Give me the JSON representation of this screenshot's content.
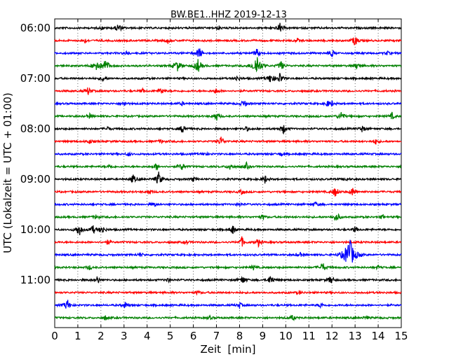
{
  "chart_data": {
    "type": "line",
    "title": "BW.BE1..HHZ 2019-12-13",
    "xlabel": "Zeit  [min]",
    "ylabel": "UTC (Lokalzeit = UTC + 01:00)",
    "xlim": [
      0,
      15
    ],
    "x_ticks": [
      "0",
      "1",
      "2",
      "3",
      "4",
      "5",
      "6",
      "7",
      "8",
      "9",
      "10",
      "11",
      "12",
      "13",
      "14",
      "15"
    ],
    "y_tick_labels": [
      "06:00",
      "07:00",
      "08:00",
      "09:00",
      "10:00",
      "11:00"
    ],
    "grid": "vertical dotted",
    "trace_colors": [
      "#000000",
      "#ff0000",
      "#0000ff",
      "#008000"
    ],
    "traces": [
      {
        "start": "06:00",
        "events": [
          [
            2.75,
            0.5
          ],
          [
            9.75,
            0.5
          ],
          [
            7.1,
            0.2
          ],
          [
            2.05,
            0.15
          ]
        ]
      },
      {
        "start": "06:15",
        "events": [
          [
            13.0,
            0.55
          ],
          [
            1.3,
            0.25
          ],
          [
            4.9,
            0.25
          ],
          [
            10.5,
            0.2
          ]
        ]
      },
      {
        "start": "06:30",
        "events": [
          [
            6.25,
            0.6
          ],
          [
            8.75,
            0.45
          ],
          [
            12.0,
            0.35
          ],
          [
            3.1,
            0.25
          ],
          [
            14.4,
            0.2
          ]
        ]
      },
      {
        "start": "06:45",
        "events": [
          [
            1.8,
            0.7
          ],
          [
            2.2,
            0.7
          ],
          [
            5.3,
            0.6
          ],
          [
            6.2,
            0.7
          ],
          [
            8.75,
            1.2
          ],
          [
            9.8,
            0.5
          ],
          [
            13.1,
            0.4
          ]
        ]
      },
      {
        "start": "07:00",
        "events": [
          [
            9.35,
            0.55
          ],
          [
            9.75,
            0.55
          ],
          [
            2.1,
            0.3
          ],
          [
            7.9,
            0.3
          ]
        ]
      },
      {
        "start": "07:15",
        "events": [
          [
            1.45,
            0.45
          ],
          [
            4.6,
            0.35
          ],
          [
            7.0,
            0.3
          ],
          [
            3.8,
            0.2
          ]
        ]
      },
      {
        "start": "07:30",
        "events": [
          [
            8.2,
            0.45
          ],
          [
            3.0,
            0.3
          ],
          [
            11.8,
            0.3
          ],
          [
            12.0,
            0.25
          ],
          [
            5.5,
            0.2
          ]
        ]
      },
      {
        "start": "07:45",
        "events": [
          [
            7.0,
            0.45
          ],
          [
            12.4,
            0.5
          ],
          [
            14.6,
            0.35
          ],
          [
            1.5,
            0.25
          ]
        ]
      },
      {
        "start": "08:00",
        "events": [
          [
            5.55,
            0.5
          ],
          [
            9.9,
            0.5
          ],
          [
            13.3,
            0.35
          ],
          [
            2.3,
            0.2
          ],
          [
            8.3,
            0.25
          ]
        ]
      },
      {
        "start": "08:15",
        "events": [
          [
            7.2,
            0.5
          ],
          [
            1.5,
            0.25
          ],
          [
            13.9,
            0.3
          ],
          [
            4.6,
            0.2
          ]
        ]
      },
      {
        "start": "08:30",
        "events": [
          [
            3.2,
            0.2
          ],
          [
            6.5,
            0.2
          ],
          [
            9.8,
            0.2
          ]
        ]
      },
      {
        "start": "08:45",
        "events": [
          [
            4.4,
            0.35
          ],
          [
            5.5,
            0.4
          ],
          [
            7.6,
            0.4
          ],
          [
            8.3,
            0.35
          ],
          [
            2.4,
            0.2
          ]
        ]
      },
      {
        "start": "09:00",
        "events": [
          [
            3.4,
            0.45
          ],
          [
            4.5,
            0.7
          ],
          [
            9.1,
            0.4
          ],
          [
            6.0,
            0.25
          ],
          [
            12.6,
            0.2
          ]
        ]
      },
      {
        "start": "09:15",
        "events": [
          [
            12.15,
            0.55
          ],
          [
            12.9,
            0.45
          ],
          [
            4.1,
            0.25
          ],
          [
            8.1,
            0.25
          ]
        ]
      },
      {
        "start": "09:30",
        "events": [
          [
            4.3,
            0.25
          ],
          [
            11.3,
            0.25
          ],
          [
            8.0,
            0.2
          ]
        ]
      },
      {
        "start": "09:45",
        "events": [
          [
            12.2,
            0.5
          ],
          [
            1.8,
            0.25
          ],
          [
            9.0,
            0.25
          ],
          [
            14.2,
            0.2
          ]
        ]
      },
      {
        "start": "10:00",
        "events": [
          [
            1.05,
            0.7
          ],
          [
            1.65,
            0.45
          ],
          [
            2.05,
            0.45
          ],
          [
            7.7,
            0.5
          ],
          [
            13.0,
            0.3
          ]
        ]
      },
      {
        "start": "10:15",
        "events": [
          [
            8.1,
            0.5
          ],
          [
            8.8,
            0.45
          ],
          [
            2.3,
            0.25
          ],
          [
            5.7,
            0.2
          ]
        ]
      },
      {
        "start": "10:30",
        "events": [
          [
            12.75,
            1.8
          ],
          [
            10.6,
            0.3
          ],
          [
            3.7,
            0.2
          ]
        ]
      },
      {
        "start": "10:45",
        "events": [
          [
            11.6,
            0.5
          ],
          [
            1.5,
            0.25
          ],
          [
            8.6,
            0.25
          ],
          [
            14.0,
            0.2
          ]
        ]
      },
      {
        "start": "11:00",
        "events": [
          [
            1.85,
            0.4
          ],
          [
            8.15,
            0.45
          ],
          [
            9.35,
            0.5
          ],
          [
            11.95,
            0.45
          ],
          [
            4.9,
            0.2
          ]
        ]
      },
      {
        "start": "11:15",
        "events": [
          [
            6.2,
            0.2
          ],
          [
            10.6,
            0.2
          ]
        ]
      },
      {
        "start": "11:30",
        "events": [
          [
            0.55,
            0.6
          ],
          [
            3.05,
            0.35
          ],
          [
            8.0,
            0.3
          ],
          [
            11.5,
            0.25
          ]
        ]
      },
      {
        "start": "11:45",
        "events": [
          [
            10.3,
            0.3
          ],
          [
            2.2,
            0.25
          ],
          [
            6.7,
            0.2
          ],
          [
            13.5,
            0.2
          ]
        ]
      }
    ]
  }
}
